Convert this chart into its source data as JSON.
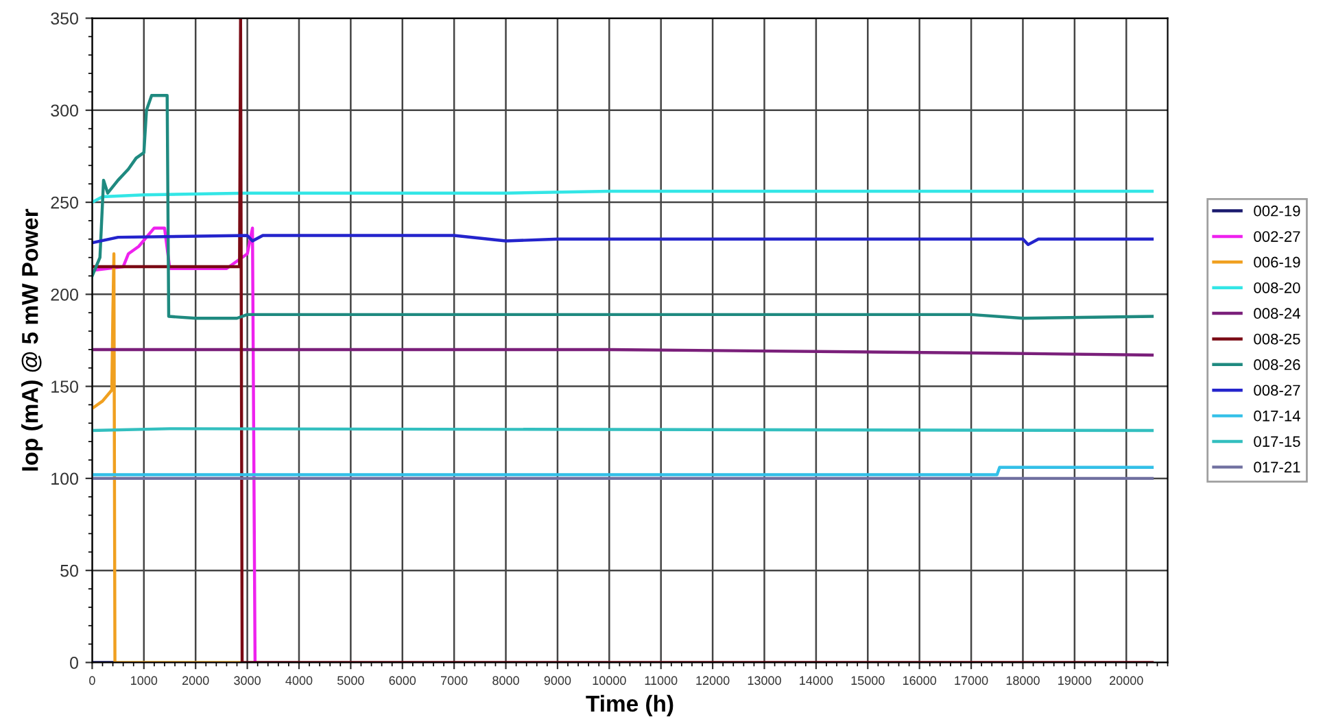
{
  "chart_data": {
    "type": "line",
    "xlabel": "Time (h)",
    "ylabel": "Iop (mA) @ 5 mW Power",
    "xlim": [
      0,
      20800
    ],
    "xticks": [
      0,
      1000,
      2000,
      3000,
      4000,
      5000,
      6000,
      7000,
      8000,
      9000,
      10000,
      11000,
      12000,
      13000,
      14000,
      15000,
      16000,
      17000,
      18000,
      19000,
      20000
    ],
    "ylim": [
      0,
      350
    ],
    "yticks": [
      0,
      50,
      100,
      150,
      200,
      250,
      300,
      350
    ],
    "grid": true,
    "legend": "right",
    "marker": "none",
    "line_style": "solid",
    "series": [
      {
        "name": "002-19",
        "color": "#1a1a6e",
        "x": [
          0,
          400
        ],
        "values": [
          0,
          0
        ]
      },
      {
        "name": "002-27",
        "color": "#ee22ee",
        "x": [
          0,
          600,
          700,
          900,
          1200,
          1400,
          1500,
          2600,
          2800,
          3000,
          3100,
          3150
        ],
        "values": [
          213,
          215,
          222,
          226,
          236,
          236,
          214,
          214,
          218,
          222,
          236,
          0
        ]
      },
      {
        "name": "006-19",
        "color": "#f0a020",
        "x": [
          0,
          200,
          380,
          400,
          420,
          440,
          2850
        ],
        "values": [
          138,
          142,
          148,
          190,
          222,
          0,
          0
        ]
      },
      {
        "name": "008-20",
        "color": "#33e6e6",
        "x": [
          0,
          200,
          1000,
          3000,
          8000,
          10000,
          20500
        ],
        "values": [
          250,
          253,
          254,
          255,
          255,
          256,
          256
        ]
      },
      {
        "name": "008-24",
        "color": "#7a1f7a",
        "x": [
          0,
          10000,
          17500,
          20500
        ],
        "values": [
          170,
          170,
          168,
          167
        ]
      },
      {
        "name": "008-25",
        "color": "#7a0a14",
        "x": [
          0,
          2850,
          2870,
          2900,
          20500
        ],
        "values": [
          215,
          215,
          350,
          0,
          0
        ]
      },
      {
        "name": "008-26",
        "color": "#1f8a80",
        "x": [
          0,
          150,
          220,
          300,
          500,
          700,
          850,
          1000,
          1050,
          1150,
          1450,
          1480,
          2000,
          2800,
          3000,
          17000,
          18000,
          20500
        ],
        "values": [
          210,
          220,
          262,
          255,
          262,
          268,
          274,
          277,
          300,
          308,
          308,
          188,
          187,
          187,
          189,
          189,
          187,
          188
        ]
      },
      {
        "name": "008-27",
        "color": "#2424cc",
        "x": [
          0,
          500,
          3000,
          3100,
          3300,
          7000,
          8000,
          9000,
          18000,
          18100,
          18300,
          20500
        ],
        "values": [
          228,
          231,
          232,
          229,
          232,
          232,
          229,
          230,
          230,
          227,
          230,
          230
        ]
      },
      {
        "name": "017-14",
        "color": "#33c0e8",
        "x": [
          0,
          17500,
          17550,
          20500
        ],
        "values": [
          102,
          102,
          106,
          106
        ]
      },
      {
        "name": "017-15",
        "color": "#33bfbf",
        "x": [
          0,
          1500,
          20500
        ],
        "values": [
          126,
          127,
          126
        ]
      },
      {
        "name": "017-21",
        "color": "#7070a0",
        "x": [
          0,
          20500
        ],
        "values": [
          100,
          100
        ]
      }
    ]
  }
}
